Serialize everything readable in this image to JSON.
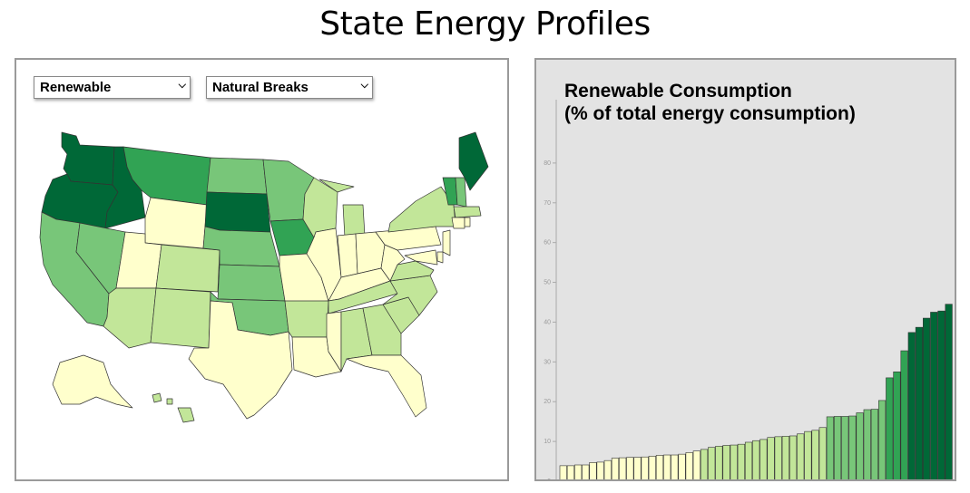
{
  "page": {
    "title": "State Energy Profiles"
  },
  "controls": {
    "attribute_select": {
      "selected": "Renewable"
    },
    "classification_select": {
      "selected": "Natural Breaks"
    }
  },
  "colors": {
    "class_1": "#ffffcc",
    "class_2": "#c2e699",
    "class_3": "#78c679",
    "class_4": "#31a354",
    "class_5": "#006837",
    "chart_background": "#e3e3e3",
    "map_stroke": "#333333"
  },
  "chart_data": {
    "type": "bar",
    "title_line1": "Renewable Consumption",
    "title_line2": "(% of total energy consumption)",
    "ylim": [
      0,
      90
    ],
    "yticks": [
      "0",
      "10",
      "20",
      "30",
      "40",
      "50",
      "60",
      "70",
      "80"
    ],
    "sorted": "ascending",
    "values": [
      3.9,
      3.9,
      4.1,
      4.1,
      4.7,
      4.8,
      5.2,
      5.8,
      5.9,
      6.0,
      6.0,
      6.1,
      6.3,
      6.5,
      6.6,
      6.6,
      6.8,
      7.2,
      7.6,
      8.0,
      8.5,
      8.8,
      9.0,
      9.1,
      9.3,
      9.8,
      10.2,
      10.5,
      11.0,
      11.2,
      11.3,
      11.4,
      11.9,
      12.5,
      12.8,
      13.5,
      16.2,
      16.3,
      16.3,
      16.4,
      17.2,
      18.0,
      18.1,
      20.3,
      26.0,
      27.5,
      32.8,
      37.4,
      38.7,
      41.0,
      42.5,
      42.8,
      44.5
    ],
    "classes": [
      1,
      1,
      1,
      1,
      1,
      1,
      1,
      1,
      1,
      1,
      1,
      1,
      1,
      1,
      1,
      1,
      1,
      1,
      1,
      2,
      2,
      2,
      2,
      2,
      2,
      2,
      2,
      2,
      2,
      2,
      2,
      2,
      2,
      2,
      2,
      2,
      3,
      3,
      3,
      3,
      3,
      3,
      3,
      3,
      4,
      4,
      4,
      5,
      5,
      5,
      5,
      5,
      5
    ]
  },
  "map_data": {
    "regions": [
      {
        "name": "Washington",
        "class": 5
      },
      {
        "name": "Oregon",
        "class": 5
      },
      {
        "name": "Idaho",
        "class": 5
      },
      {
        "name": "Montana",
        "class": 4
      },
      {
        "name": "Wyoming",
        "class": 1
      },
      {
        "name": "California",
        "class": 3
      },
      {
        "name": "Nevada",
        "class": 3
      },
      {
        "name": "Utah",
        "class": 1
      },
      {
        "name": "Arizona",
        "class": 2
      },
      {
        "name": "Colorado",
        "class": 2
      },
      {
        "name": "New Mexico",
        "class": 2
      },
      {
        "name": "North Dakota",
        "class": 3
      },
      {
        "name": "South Dakota",
        "class": 5
      },
      {
        "name": "Nebraska",
        "class": 3
      },
      {
        "name": "Kansas",
        "class": 3
      },
      {
        "name": "Oklahoma",
        "class": 3
      },
      {
        "name": "Texas",
        "class": 1
      },
      {
        "name": "Minnesota",
        "class": 3
      },
      {
        "name": "Iowa",
        "class": 4
      },
      {
        "name": "Missouri",
        "class": 1
      },
      {
        "name": "Arkansas",
        "class": 2
      },
      {
        "name": "Louisiana",
        "class": 1
      },
      {
        "name": "Wisconsin",
        "class": 2
      },
      {
        "name": "Illinois",
        "class": 1
      },
      {
        "name": "Michigan",
        "class": 2
      },
      {
        "name": "Indiana",
        "class": 1
      },
      {
        "name": "Ohio",
        "class": 1
      },
      {
        "name": "Kentucky",
        "class": 1
      },
      {
        "name": "Tennessee",
        "class": 2
      },
      {
        "name": "Mississippi",
        "class": 1
      },
      {
        "name": "Alabama",
        "class": 2
      },
      {
        "name": "Georgia",
        "class": 2
      },
      {
        "name": "Florida",
        "class": 1
      },
      {
        "name": "South Carolina",
        "class": 2
      },
      {
        "name": "North Carolina",
        "class": 2
      },
      {
        "name": "Virginia",
        "class": 2
      },
      {
        "name": "West Virginia",
        "class": 1
      },
      {
        "name": "Pennsylvania",
        "class": 1
      },
      {
        "name": "New York",
        "class": 2
      },
      {
        "name": "Vermont",
        "class": 4
      },
      {
        "name": "New Hampshire",
        "class": 3
      },
      {
        "name": "Maine",
        "class": 5
      },
      {
        "name": "Massachusetts",
        "class": 2
      },
      {
        "name": "Connecticut",
        "class": 1
      },
      {
        "name": "New Jersey",
        "class": 1
      },
      {
        "name": "Delaware",
        "class": 1
      },
      {
        "name": "Maryland",
        "class": 1
      },
      {
        "name": "Rhode Island",
        "class": 1
      },
      {
        "name": "Alaska",
        "class": 1
      },
      {
        "name": "Hawaii",
        "class": 2
      }
    ]
  }
}
